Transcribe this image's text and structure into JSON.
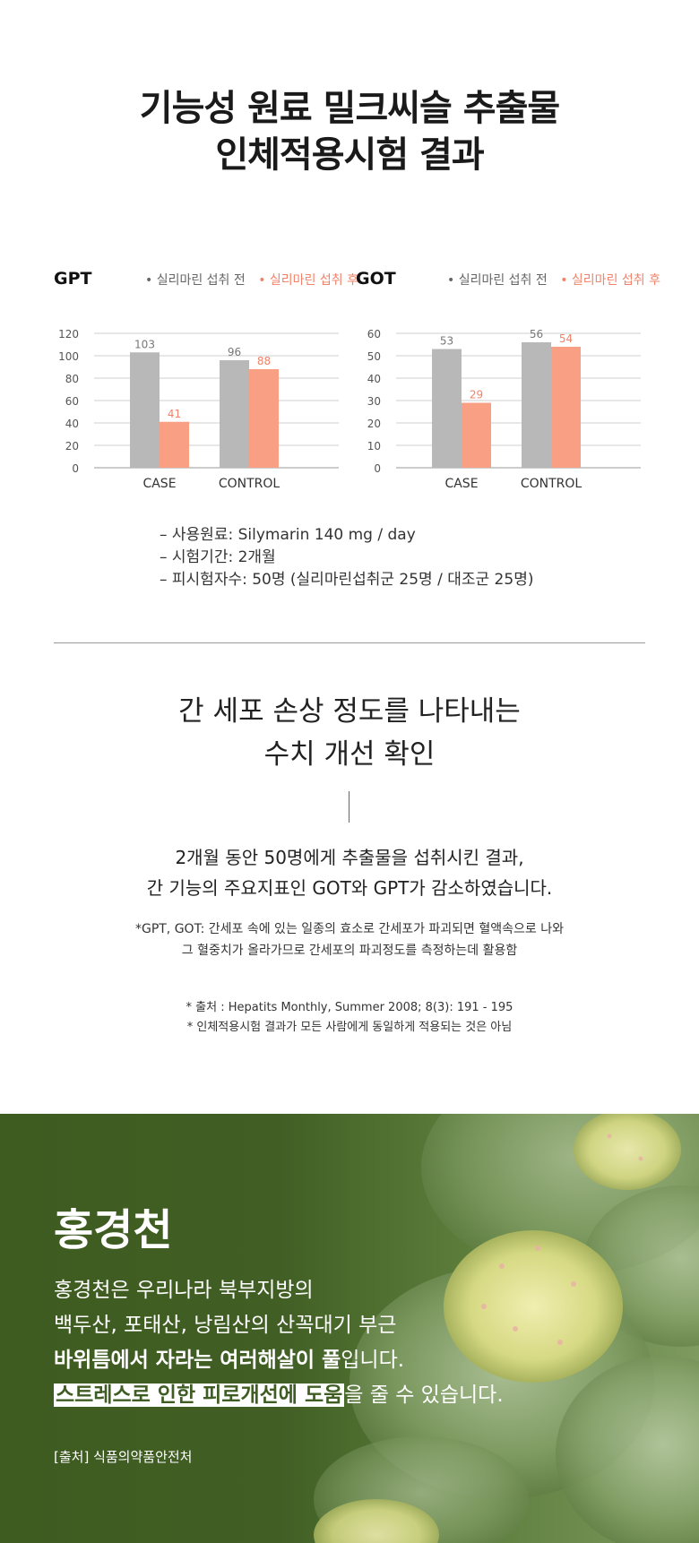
{
  "title": {
    "line1": "기능성 원료 밀크씨슬 추출물",
    "line2": "인체적용시험 결과"
  },
  "legend": {
    "before": "• 실리마린 섭취 전",
    "after": "• 실리마린 섭취 후"
  },
  "colors": {
    "before": "#b8b8b8",
    "after": "#f9a084",
    "after_label": "#f0836a",
    "herb_bg": "#3f5d23"
  },
  "chart_data": [
    {
      "type": "bar",
      "title": "GPT",
      "categories": [
        "CASE",
        "CONTROL"
      ],
      "series": [
        {
          "name": "실리마린 섭취 전",
          "values": [
            103,
            96
          ]
        },
        {
          "name": "실리마린 섭취 후",
          "values": [
            41,
            88
          ]
        }
      ],
      "ylim": [
        0,
        120
      ],
      "yticks": [
        0,
        20,
        40,
        60,
        80,
        100,
        120
      ],
      "grid": true,
      "legend": "top-right"
    },
    {
      "type": "bar",
      "title": "GOT",
      "categories": [
        "CASE",
        "CONTROL"
      ],
      "series": [
        {
          "name": "실리마린 섭취 전",
          "values": [
            53,
            56
          ]
        },
        {
          "name": "실리마린 섭취 후",
          "values": [
            29,
            54
          ]
        }
      ],
      "ylim": [
        0,
        60
      ],
      "yticks": [
        0,
        10,
        20,
        30,
        40,
        50,
        60
      ],
      "grid": true,
      "legend": "top-right"
    }
  ],
  "notes": {
    "material": "– 사용원료: Silymarin 140 mg / day",
    "period": "– 시험기간: 2개월",
    "subjects": "– 피시험자수: 50명 (실리마린섭취군 25명 / 대조군 25명)"
  },
  "result": {
    "line1": "간 세포 손상 정도를 나타내는",
    "line2": "수치 개선 확인"
  },
  "description": {
    "line1": "2개월 동안 50명에게 추출물을 섭취시킨 결과,",
    "line2": "간 기능의 주요지표인 GOT와 GPT가 감소하였습니다."
  },
  "footnote": {
    "line1": "*GPT, GOT: 간세포 속에 있는 일종의 효소로 간세포가 파괴되면 혈액속으로 나와",
    "line2": "그 혈중치가 올라가므로 간세포의 파괴정도를 측정하는데 활용함"
  },
  "source": {
    "line1": "* 출처 : Hepatits Monthly, Summer 2008; 8(3): 191 - 195",
    "line2": "* 인체적용시험 결과가 모든 사람에게 동일하게 적용되는 것은 아님"
  },
  "herb": {
    "title": "홍경천",
    "line1": "홍경천은 우리나라 북부지방의",
    "line2": "백두산, 포태산, 낭림산의 산꼭대기 부근",
    "line3_bold": "바위틈에서 자라는 여러해살이 풀",
    "line3_rest": "입니다.",
    "line4_highlight": "스트레스로 인한 피로개선에 도움",
    "line4_rest": "을 줄 수 있습니다.",
    "source": "[출처] 식품의약품안전처"
  }
}
